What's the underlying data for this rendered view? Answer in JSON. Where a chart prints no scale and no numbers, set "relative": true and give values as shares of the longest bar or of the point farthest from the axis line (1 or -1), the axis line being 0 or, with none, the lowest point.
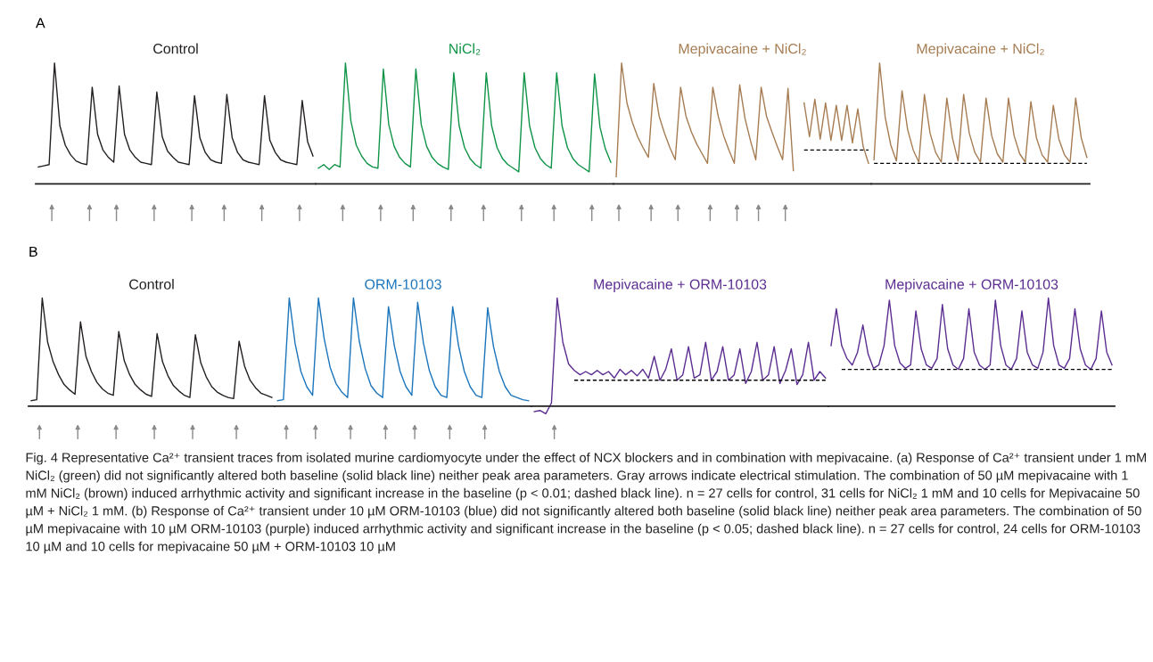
{
  "chart_data": [
    {
      "type": "line",
      "relative": true,
      "annotations": [
        "A"
      ],
      "categories": [
        null,
        null,
        null,
        null,
        null,
        null,
        null,
        null,
        null,
        null,
        null,
        null,
        null,
        null,
        null,
        null,
        null,
        null,
        null,
        null,
        null,
        null,
        null,
        null,
        null,
        null,
        null,
        null,
        null,
        null,
        null,
        null,
        null,
        null,
        null,
        null,
        null,
        null,
        null,
        null,
        null,
        null,
        null,
        null,
        null,
        null,
        null,
        null,
        null,
        null,
        null,
        null
      ],
      "series": [
        {
          "name": "Control",
          "color": "#231f20",
          "values": [
            0.14,
            0.15,
            0.16,
            1.0,
            0.48,
            0.32,
            0.24,
            0.19,
            0.17,
            0.16,
            0.8,
            0.41,
            0.28,
            0.22,
            0.18,
            0.81,
            0.41,
            0.28,
            0.22,
            0.18,
            0.17,
            0.16,
            0.76,
            0.39,
            0.27,
            0.22,
            0.18,
            0.17,
            0.16,
            0.73,
            0.38,
            0.26,
            0.2,
            0.18,
            0.17,
            0.74,
            0.38,
            0.26,
            0.2,
            0.18,
            0.17,
            0.16,
            0.73,
            0.36,
            0.26,
            0.2,
            0.18,
            0.17,
            0.16,
            0.69,
            0.35,
            0.23
          ]
        }
      ]
    },
    {
      "type": "line",
      "relative": true,
      "categories": [
        null,
        null,
        null,
        null,
        null,
        null,
        null,
        null,
        null,
        null,
        null,
        null,
        null,
        null,
        null,
        null,
        null,
        null,
        null,
        null,
        null,
        null,
        null,
        null,
        null,
        null,
        null,
        null,
        null,
        null,
        null,
        null,
        null,
        null,
        null,
        null,
        null,
        null,
        null,
        null,
        null,
        null,
        null,
        null,
        null,
        null,
        null,
        null,
        null,
        null,
        null,
        null,
        null,
        null,
        null
      ],
      "series": [
        {
          "name": "NiCl₂",
          "color": "#0f9447",
          "values": [
            0.13,
            0.16,
            0.12,
            0.16,
            0.14,
            1.0,
            0.52,
            0.32,
            0.23,
            0.17,
            0.14,
            0.13,
            0.95,
            0.49,
            0.31,
            0.22,
            0.17,
            0.14,
            0.95,
            0.49,
            0.31,
            0.22,
            0.17,
            0.14,
            0.12,
            0.92,
            0.48,
            0.3,
            0.21,
            0.16,
            0.13,
            0.92,
            0.48,
            0.3,
            0.21,
            0.16,
            0.13,
            0.1,
            0.92,
            0.48,
            0.3,
            0.21,
            0.16,
            0.13,
            0.92,
            0.48,
            0.3,
            0.21,
            0.16,
            0.13,
            0.1,
            0.91,
            0.47,
            0.29,
            0.18
          ]
        }
      ]
    },
    {
      "type": "line",
      "relative": true,
      "categories": [
        null,
        null,
        null,
        null,
        null,
        null,
        null,
        null,
        null,
        null,
        null,
        null,
        null,
        null,
        null,
        null,
        null,
        null,
        null,
        null,
        null,
        null,
        null,
        null,
        null,
        null,
        null,
        null,
        null,
        null,
        null,
        null,
        null,
        null,
        null,
        null,
        null,
        null,
        null,
        null,
        null,
        null,
        null,
        null,
        null,
        null,
        null,
        null
      ],
      "series": [
        {
          "name": "Mepivacaine + NiCl₂",
          "color": "#a67c52",
          "values": [
            0.06,
            1.0,
            0.67,
            0.51,
            0.39,
            0.3,
            0.22,
            0.83,
            0.56,
            0.42,
            0.3,
            0.2,
            0.8,
            0.56,
            0.43,
            0.33,
            0.25,
            0.17,
            0.8,
            0.56,
            0.4,
            0.28,
            0.17,
            0.82,
            0.54,
            0.36,
            0.2,
            0.8,
            0.56,
            0.43,
            0.31,
            0.2,
            0.79,
            0.11,
            null,
            0.67,
            0.39,
            0.7,
            0.37,
            0.67,
            0.36,
            0.65,
            0.36,
            0.65,
            0.34,
            0.62,
            0.31,
            0.17
          ]
        },
        {
          "color": "#000000",
          "line_style": "dashed",
          "values": [
            null,
            null,
            null,
            null,
            null,
            null,
            null,
            null,
            null,
            null,
            null,
            null,
            null,
            null,
            null,
            null,
            null,
            null,
            null,
            null,
            null,
            null,
            null,
            null,
            null,
            null,
            null,
            null,
            null,
            null,
            null,
            null,
            null,
            null,
            null,
            0.28,
            0.28,
            0.28,
            0.28,
            0.28,
            0.28,
            0.28,
            0.28,
            0.28,
            0.28,
            0.28,
            0.28,
            0.28
          ]
        }
      ]
    },
    {
      "type": "line",
      "relative": true,
      "categories": [
        null,
        null,
        null,
        null,
        null,
        null,
        null,
        null,
        null,
        null,
        null,
        null,
        null,
        null,
        null,
        null,
        null,
        null,
        null,
        null,
        null,
        null,
        null,
        null,
        null,
        null,
        null,
        null,
        null,
        null,
        null,
        null,
        null,
        null,
        null,
        null,
        null,
        null,
        null
      ],
      "series": [
        {
          "name": "Mepivacaine + NiCl₂",
          "color": "#a67c52",
          "values": [
            0.2,
            1.0,
            0.55,
            0.32,
            0.19,
            0.77,
            0.45,
            0.28,
            0.18,
            0.74,
            0.42,
            0.26,
            0.18,
            0.71,
            0.38,
            0.19,
            0.74,
            0.42,
            0.26,
            0.18,
            0.71,
            0.4,
            0.25,
            0.18,
            0.71,
            0.4,
            0.25,
            0.18,
            0.68,
            0.38,
            0.24,
            0.18,
            0.65,
            0.37,
            0.24,
            0.18,
            0.71,
            0.38,
            0.22
          ]
        },
        {
          "color": "#000000",
          "line_style": "dashed",
          "values": [
            0.17,
            0.17,
            0.17,
            0.17,
            0.17,
            0.17,
            0.17,
            0.17,
            0.17,
            0.17,
            0.17,
            0.17,
            0.17,
            0.17,
            0.17,
            0.17,
            0.17,
            0.17,
            0.17,
            0.17,
            0.17,
            0.17,
            0.17,
            0.17,
            0.17,
            0.17,
            0.17,
            0.17,
            0.17,
            0.17,
            0.17,
            0.17,
            0.17,
            0.17,
            0.17,
            0.17,
            0.17,
            0.17,
            0.17
          ]
        }
      ]
    },
    {
      "type": "line",
      "relative": true,
      "annotations": [
        "B"
      ],
      "categories": [
        null,
        null,
        null,
        null,
        null,
        null,
        null,
        null,
        null,
        null,
        null,
        null,
        null,
        null,
        null,
        null,
        null,
        null,
        null,
        null,
        null,
        null,
        null,
        null,
        null,
        null,
        null,
        null,
        null,
        null,
        null,
        null,
        null,
        null,
        null,
        null,
        null,
        null,
        null,
        null,
        null,
        null,
        null,
        null,
        null
      ],
      "series": [
        {
          "name": "Control",
          "color": "#231f20",
          "values": [
            0.05,
            0.06,
            1.0,
            0.59,
            0.41,
            0.29,
            0.2,
            0.15,
            0.11,
            0.78,
            0.46,
            0.32,
            0.22,
            0.16,
            0.12,
            0.1,
            0.69,
            0.42,
            0.29,
            0.2,
            0.15,
            0.11,
            0.09,
            0.67,
            0.41,
            0.28,
            0.19,
            0.14,
            0.1,
            0.08,
            0.66,
            0.4,
            0.27,
            0.18,
            0.13,
            0.1,
            0.08,
            0.07,
            0.6,
            0.37,
            0.24,
            0.17,
            0.12,
            0.1,
            0.08
          ]
        }
      ]
    },
    {
      "type": "line",
      "relative": true,
      "categories": [
        null,
        null,
        null,
        null,
        null,
        null,
        null,
        null,
        null,
        null,
        null,
        null,
        null,
        null,
        null,
        null,
        null,
        null,
        null,
        null,
        null,
        null,
        null,
        null,
        null,
        null,
        null,
        null,
        null,
        null,
        null,
        null,
        null,
        null,
        null,
        null,
        null,
        null,
        null,
        null,
        null,
        null,
        null,
        null
      ],
      "series": [
        {
          "name": "ORM-10103",
          "color": "#1b75bc",
          "values": [
            0.05,
            0.06,
            1.0,
            0.58,
            0.32,
            0.18,
            0.1,
            1.0,
            0.62,
            0.36,
            0.21,
            0.13,
            0.08,
            1.0,
            0.6,
            0.35,
            0.19,
            0.12,
            0.08,
            0.92,
            0.56,
            0.32,
            0.18,
            0.1,
            0.96,
            0.58,
            0.33,
            0.18,
            0.1,
            0.08,
            0.92,
            0.56,
            0.32,
            0.18,
            0.1,
            0.08,
            0.91,
            0.55,
            0.32,
            0.18,
            0.1,
            0.08,
            0.06,
            0.05
          ]
        }
      ]
    },
    {
      "type": "line",
      "relative": true,
      "categories": [
        null,
        null,
        null,
        null,
        null,
        null,
        null,
        null,
        null,
        null,
        null,
        null,
        null,
        null,
        null,
        null,
        null,
        null,
        null,
        null,
        null,
        null,
        null,
        null,
        null,
        null,
        null,
        null,
        null,
        null,
        null,
        null,
        null,
        null,
        null,
        null,
        null,
        null,
        null,
        null,
        null,
        null,
        null,
        null,
        null,
        null,
        null,
        null,
        null,
        null,
        null,
        null
      ],
      "series": [
        {
          "name": "Mepivacaine + ORM-10103",
          "color": "#5c2d91",
          "values": [
            -0.05,
            -0.04,
            -0.07,
            0.03,
            1.0,
            0.59,
            0.39,
            0.33,
            0.29,
            0.32,
            0.29,
            0.33,
            0.29,
            0.32,
            0.26,
            0.34,
            0.29,
            0.33,
            0.28,
            0.34,
            0.26,
            0.46,
            0.24,
            0.34,
            0.53,
            0.24,
            0.29,
            0.55,
            0.26,
            0.29,
            0.59,
            0.24,
            0.32,
            0.55,
            0.24,
            0.29,
            0.53,
            0.21,
            0.32,
            0.59,
            0.24,
            0.29,
            0.55,
            0.21,
            0.33,
            0.53,
            0.2,
            0.29,
            0.59,
            0.24,
            0.32,
            0.26
          ]
        },
        {
          "color": "#000000",
          "line_style": "dashed",
          "values": [
            null,
            null,
            null,
            null,
            null,
            null,
            null,
            0.24,
            0.24,
            0.24,
            0.24,
            0.24,
            0.24,
            0.24,
            0.24,
            0.24,
            0.24,
            0.24,
            0.24,
            0.24,
            0.24,
            0.24,
            0.24,
            0.24,
            0.24,
            0.24,
            0.24,
            0.24,
            0.24,
            0.24,
            0.24,
            0.24,
            0.24,
            0.24,
            0.24,
            0.24,
            0.24,
            0.24,
            0.24,
            0.24,
            0.24,
            0.24,
            0.24,
            0.24,
            0.24,
            0.24,
            0.24,
            0.24,
            0.24,
            0.24,
            0.24,
            0.24
          ]
        }
      ]
    },
    {
      "type": "line",
      "relative": true,
      "annotations": [
        "Fig. 4 Representative Ca²⁺ transient traces from isolated murine cardiomyocyte under the effect of NCX blockers and in combination with mepivacaine. (a) Response of Ca²⁺ transient under 1 mM NiCl₂ (green) did not significantly altered both baseline (solid black line) neither peak area parameters. Gray arrows indicate electrical stimulation. The combination of 50 µM mepivacaine with 1 mM NiCl₂ (brown) induced arrhythmic activity and significant increase in the baseline (p < 0.01; dashed black line). n = 27 cells for control, 31 cells for NiCl₂ 1 mM and 10 cells for Mepivacaine 50 µM + NiCl₂ 1 mM. (b) Response of Ca²⁺ transient under 10 µM ORM-10103 (blue) did not significantly altered both baseline (solid black line) neither peak area parameters. The combination of 50 µM mepivacaine with 10 µM ORM-10103 (purple) induced arrhythmic activity and significant increase in the baseline (p < 0.05; dashed black line). n = 27 cells for control, 24 cells for ORM-10103 10 µM and 10 cells for mepivacaine 50 µM + ORM-10103 10 µM"
      ],
      "categories": [
        null,
        null,
        null,
        null,
        null,
        null,
        null,
        null,
        null,
        null,
        null,
        null,
        null,
        null,
        null,
        null,
        null,
        null,
        null,
        null,
        null,
        null,
        null,
        null,
        null,
        null,
        null,
        null,
        null,
        null,
        null,
        null,
        null,
        null,
        null,
        null,
        null,
        null,
        null,
        null,
        null,
        null,
        null,
        null,
        null,
        null,
        null,
        null,
        null,
        null,
        null,
        null,
        null,
        null
      ],
      "series": [
        {
          "name": "Mepivacaine + ORM-10103",
          "color": "#5c2d91",
          "values": [
            0.56,
            0.9,
            0.56,
            0.44,
            0.38,
            0.5,
            0.75,
            0.48,
            0.35,
            0.38,
            0.56,
            0.98,
            0.56,
            0.4,
            0.35,
            0.38,
            0.88,
            0.53,
            0.38,
            0.35,
            0.44,
            0.94,
            0.53,
            0.38,
            0.34,
            0.44,
            0.9,
            0.5,
            0.38,
            0.34,
            0.38,
            0.98,
            0.56,
            0.38,
            0.34,
            0.44,
            0.88,
            0.5,
            0.38,
            0.35,
            0.5,
            1.0,
            0.56,
            0.38,
            0.35,
            0.44,
            0.9,
            0.53,
            0.38,
            0.34,
            0.44,
            0.88,
            0.5,
            0.38
          ]
        },
        {
          "color": "#000000",
          "line_style": "dashed",
          "values": [
            null,
            null,
            0.34,
            0.34,
            0.34,
            0.34,
            0.34,
            0.34,
            0.34,
            0.34,
            0.34,
            0.34,
            0.34,
            0.34,
            0.34,
            0.34,
            0.34,
            0.34,
            0.34,
            0.34,
            0.34,
            0.34,
            0.34,
            0.34,
            0.34,
            0.34,
            0.34,
            0.34,
            0.34,
            0.34,
            0.34,
            0.34,
            0.34,
            0.34,
            0.34,
            0.34,
            0.34,
            0.34,
            0.34,
            0.34,
            0.34,
            0.34,
            0.34,
            0.34,
            0.34,
            0.34,
            0.34,
            0.34,
            0.34,
            0.34,
            0.34,
            0.34,
            0.34,
            0.34
          ]
        }
      ]
    }
  ]
}
